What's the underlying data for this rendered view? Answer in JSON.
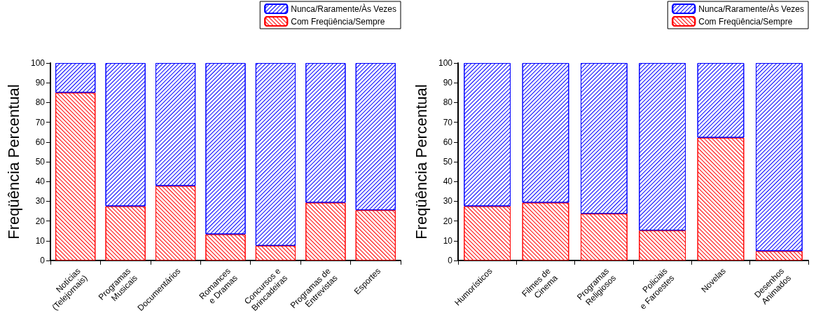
{
  "chart_data": [
    {
      "type": "bar",
      "stacked": true,
      "ylabel": "Freqüência Percentual",
      "categories": [
        "Notícias\n(Telejornais)",
        "Programas\nMusicais",
        "Documentários",
        "Romances\ne Dramas",
        "Concursos e\nBrincadeiras",
        "Programas de\nEntrevistas",
        "Esportes"
      ],
      "series": [
        {
          "name": "Com Freqüência/Sempre",
          "color": "#ff0000",
          "values": [
            85,
            27.5,
            37.8,
            13.3,
            7.5,
            29.3,
            25.5
          ]
        },
        {
          "name": "Nunca/Raramente/Às Vezes",
          "color": "#0000ff",
          "values": [
            15,
            72.5,
            62.2,
            86.7,
            92.5,
            70.7,
            74.5
          ]
        }
      ],
      "ylim": [
        0,
        100
      ],
      "yticks": [
        0,
        10,
        20,
        30,
        40,
        50,
        60,
        70,
        80,
        90,
        100
      ],
      "grid": false,
      "legend": "top right"
    },
    {
      "type": "bar",
      "stacked": true,
      "ylabel": "Freqüência Percentual",
      "categories": [
        "Humorísticos",
        "Filmes de\nCinema",
        "Programas\nReligiosos",
        "Policiais\ne Faroestes",
        "Novelas",
        "Desenhos\nAnimados"
      ],
      "series": [
        {
          "name": "Com Freqüência/Sempre",
          "color": "#ff0000",
          "values": [
            27.5,
            29.3,
            23.7,
            15.2,
            62.2,
            4.8
          ]
        },
        {
          "name": "Nunca/Raramente/Às Vezes",
          "color": "#0000ff",
          "values": [
            72.5,
            70.7,
            76.3,
            84.8,
            37.8,
            95.2
          ]
        }
      ],
      "ylim": [
        0,
        100
      ],
      "yticks": [
        0,
        10,
        20,
        30,
        40,
        50,
        60,
        70,
        80,
        90,
        100
      ],
      "grid": false,
      "legend": "top right"
    }
  ]
}
